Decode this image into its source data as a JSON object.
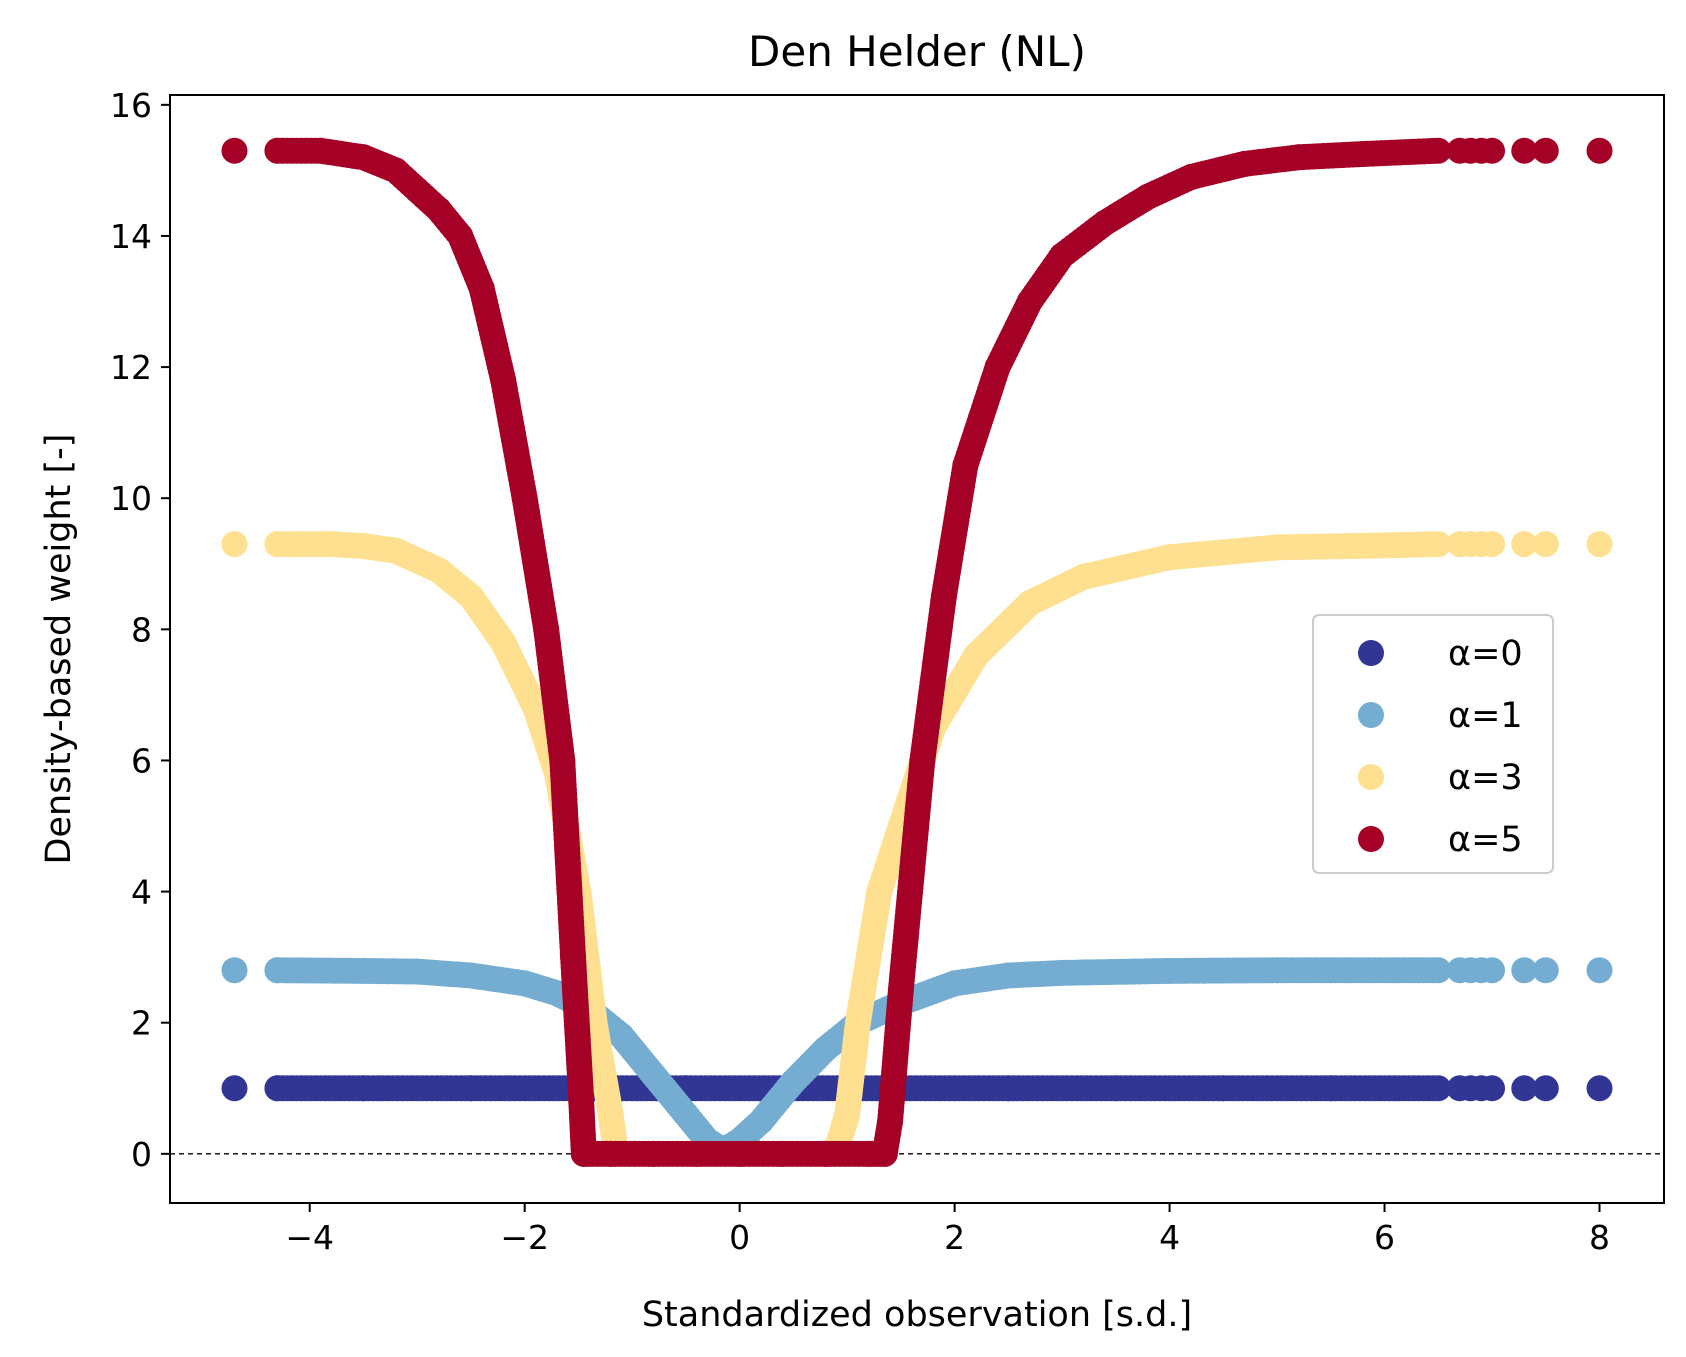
{
  "chart_data": {
    "type": "scatter",
    "title": "Den Helder (NL)",
    "xlabel": "Standardized observation [s.d.]",
    "ylabel": "Density-based weight [-]",
    "xlim": [
      -5.3,
      8.6
    ],
    "ylim": [
      -0.75,
      16.15
    ],
    "xticks": [
      -4,
      -2,
      0,
      2,
      4,
      6,
      8
    ],
    "xtick_labels": [
      "−4",
      "−2",
      "0",
      "2",
      "4",
      "6",
      "8"
    ],
    "yticks": [
      0,
      2,
      4,
      6,
      8,
      10,
      12,
      14,
      16
    ],
    "ytick_labels": [
      "0",
      "2",
      "4",
      "6",
      "8",
      "10",
      "12",
      "14",
      "16"
    ],
    "reference_line": {
      "y": 0,
      "style": "dashed"
    },
    "grid": false,
    "legend_position": "center-right",
    "series": [
      {
        "name": "α=0",
        "color": "#313695",
        "points": [
          [
            -4.7,
            1.0
          ],
          [
            -4.3,
            1.0
          ],
          [
            -3.5,
            1.0
          ],
          [
            -2.5,
            1.0
          ],
          [
            -1.5,
            1.0
          ],
          [
            -0.5,
            1.0
          ],
          [
            0.5,
            1.0
          ],
          [
            1.5,
            1.0
          ],
          [
            2.5,
            1.0
          ],
          [
            3.5,
            1.0
          ],
          [
            4.5,
            1.0
          ],
          [
            5.5,
            1.0
          ],
          [
            6.5,
            1.0
          ],
          [
            6.7,
            1.0
          ],
          [
            6.8,
            1.0
          ],
          [
            6.9,
            1.0
          ],
          [
            7.0,
            1.0
          ],
          [
            7.3,
            1.0
          ],
          [
            7.5,
            1.0
          ],
          [
            8.0,
            1.0
          ]
        ]
      },
      {
        "name": "α=1",
        "color": "#74add1",
        "points": [
          [
            -4.7,
            2.8
          ],
          [
            -4.3,
            2.8
          ],
          [
            -3.5,
            2.79
          ],
          [
            -3.0,
            2.78
          ],
          [
            -2.5,
            2.72
          ],
          [
            -2.0,
            2.6
          ],
          [
            -1.7,
            2.45
          ],
          [
            -1.4,
            2.2
          ],
          [
            -1.1,
            1.8
          ],
          [
            -0.8,
            1.2
          ],
          [
            -0.5,
            0.6
          ],
          [
            -0.3,
            0.2
          ],
          [
            -0.15,
            0.05
          ],
          [
            0.0,
            0.2
          ],
          [
            0.2,
            0.5
          ],
          [
            0.5,
            1.1
          ],
          [
            0.8,
            1.6
          ],
          [
            1.1,
            2.0
          ],
          [
            1.5,
            2.3
          ],
          [
            2.0,
            2.6
          ],
          [
            2.5,
            2.72
          ],
          [
            3.0,
            2.76
          ],
          [
            4.0,
            2.79
          ],
          [
            5.0,
            2.8
          ],
          [
            6.5,
            2.8
          ],
          [
            6.7,
            2.8
          ],
          [
            6.8,
            2.8
          ],
          [
            6.9,
            2.8
          ],
          [
            7.0,
            2.8
          ],
          [
            7.3,
            2.8
          ],
          [
            7.5,
            2.8
          ],
          [
            8.0,
            2.8
          ]
        ]
      },
      {
        "name": "α=3",
        "color": "#fee090",
        "points": [
          [
            -4.7,
            9.3
          ],
          [
            -4.3,
            9.3
          ],
          [
            -3.8,
            9.3
          ],
          [
            -3.5,
            9.27
          ],
          [
            -3.2,
            9.2
          ],
          [
            -2.8,
            8.9
          ],
          [
            -2.5,
            8.5
          ],
          [
            -2.2,
            7.8
          ],
          [
            -1.9,
            6.8
          ],
          [
            -1.7,
            5.8
          ],
          [
            -1.5,
            4.0
          ],
          [
            -1.35,
            2.0
          ],
          [
            -1.2,
            0.6
          ],
          [
            -1.15,
            0.0
          ],
          [
            -0.8,
            0.0
          ],
          [
            -0.4,
            0.0
          ],
          [
            0.0,
            0.0
          ],
          [
            0.4,
            0.0
          ],
          [
            0.8,
            0.0
          ],
          [
            0.9,
            0.05
          ],
          [
            1.0,
            0.6
          ],
          [
            1.1,
            2.0
          ],
          [
            1.3,
            4.0
          ],
          [
            1.5,
            5.0
          ],
          [
            1.8,
            6.5
          ],
          [
            2.2,
            7.6
          ],
          [
            2.7,
            8.4
          ],
          [
            3.2,
            8.8
          ],
          [
            4.0,
            9.1
          ],
          [
            5.0,
            9.25
          ],
          [
            6.0,
            9.28
          ],
          [
            6.5,
            9.3
          ],
          [
            6.7,
            9.3
          ],
          [
            6.8,
            9.3
          ],
          [
            6.9,
            9.3
          ],
          [
            7.0,
            9.3
          ],
          [
            7.3,
            9.3
          ],
          [
            7.5,
            9.3
          ],
          [
            8.0,
            9.3
          ]
        ]
      },
      {
        "name": "α=5",
        "color": "#a50026",
        "points": [
          [
            -4.7,
            15.3
          ],
          [
            -4.3,
            15.3
          ],
          [
            -3.9,
            15.3
          ],
          [
            -3.5,
            15.2
          ],
          [
            -3.2,
            15.0
          ],
          [
            -3.0,
            14.7
          ],
          [
            -2.8,
            14.4
          ],
          [
            -2.6,
            14.0
          ],
          [
            -2.4,
            13.2
          ],
          [
            -2.2,
            11.8
          ],
          [
            -2.0,
            10.0
          ],
          [
            -1.8,
            8.0
          ],
          [
            -1.65,
            6.0
          ],
          [
            -1.55,
            3.0
          ],
          [
            -1.48,
            1.0
          ],
          [
            -1.45,
            0.0
          ],
          [
            -1.2,
            0.0
          ],
          [
            -0.8,
            0.0
          ],
          [
            -0.4,
            0.0
          ],
          [
            0.0,
            0.0
          ],
          [
            0.4,
            0.0
          ],
          [
            0.8,
            0.0
          ],
          [
            1.2,
            0.0
          ],
          [
            1.35,
            0.0
          ],
          [
            1.4,
            0.5
          ],
          [
            1.5,
            2.5
          ],
          [
            1.7,
            6.0
          ],
          [
            1.9,
            8.5
          ],
          [
            2.1,
            10.5
          ],
          [
            2.4,
            12.0
          ],
          [
            2.7,
            13.0
          ],
          [
            3.0,
            13.7
          ],
          [
            3.4,
            14.2
          ],
          [
            3.8,
            14.6
          ],
          [
            4.2,
            14.9
          ],
          [
            4.7,
            15.1
          ],
          [
            5.2,
            15.2
          ],
          [
            5.8,
            15.25
          ],
          [
            6.5,
            15.3
          ],
          [
            6.7,
            15.3
          ],
          [
            6.8,
            15.3
          ],
          [
            6.9,
            15.3
          ],
          [
            7.0,
            15.3
          ],
          [
            7.3,
            15.3
          ],
          [
            7.5,
            15.3
          ],
          [
            8.0,
            15.3
          ]
        ]
      }
    ]
  }
}
